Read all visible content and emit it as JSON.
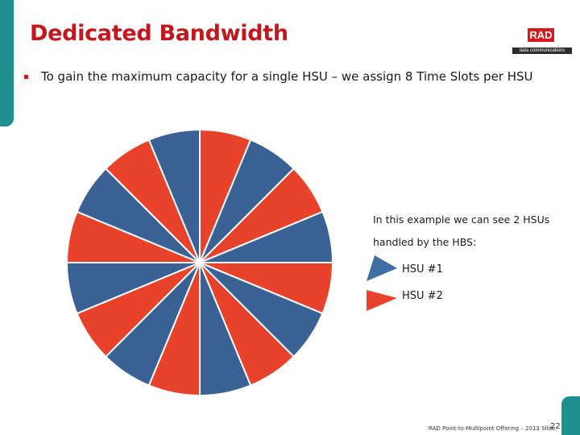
{
  "slide": {
    "title": "Dedicated Bandwidth",
    "bullet": "To gain the maximum capacity for a single HSU – we assign 8 Time Slots per HSU",
    "logo": {
      "text": "RAD",
      "tagline": "data communications"
    },
    "note_line1": "In this example we can see 2 HSUs",
    "note_line2": "handled by the HBS:",
    "footer": "RAD Point-to-Multipoint Offering – 2013 Slide",
    "page_number": "22"
  },
  "legend": [
    {
      "label": "HSU #1",
      "color": "#3f6ea3",
      "icon": "blue-triangle-icon"
    },
    {
      "label": "HSU #2",
      "color": "#e8432a",
      "icon": "red-triangle-icon"
    }
  ],
  "time_slots": {
    "total_slots": 16,
    "slots_per_hsu": 8,
    "colors": {
      "HSU #1": "#3a6194",
      "HSU #2": "#e8432a"
    },
    "sequence": [
      "HSU #2",
      "HSU #1",
      "HSU #2",
      "HSU #1",
      "HSU #2",
      "HSU #1",
      "HSU #2",
      "HSU #1",
      "HSU #2",
      "HSU #1",
      "HSU #2",
      "HSU #1",
      "HSU #2",
      "HSU #1",
      "HSU #2",
      "HSU #1"
    ]
  }
}
